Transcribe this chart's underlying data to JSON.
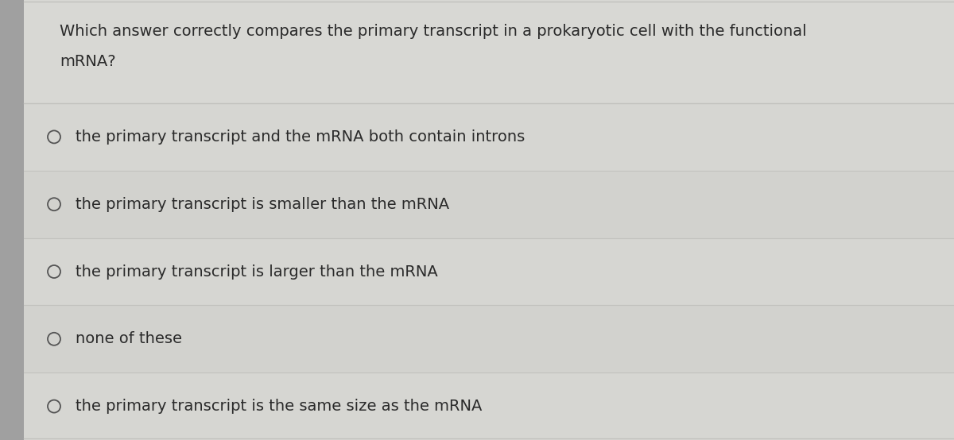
{
  "question_line1": "Which answer correctly compares the primary transcript in a prokaryotic cell with the functional",
  "question_line2": "mRNA?",
  "options": [
    "the primary transcript and the mRNA both contain introns",
    "the primary transcript is smaller than the mRNA",
    "the primary transcript is larger than the mRNA",
    "none of these",
    "the primary transcript is the same size as the mRNA"
  ],
  "bg_color": "#b8b8b8",
  "panel_color": "#d4d4d0",
  "left_strip_color": "#a0a0a0",
  "text_color": "#2a2a2a",
  "circle_color": "#555555",
  "divider_color": "#c2c2be",
  "question_fontsize": 14,
  "option_fontsize": 14,
  "fig_width": 12.0,
  "fig_height": 5.54
}
